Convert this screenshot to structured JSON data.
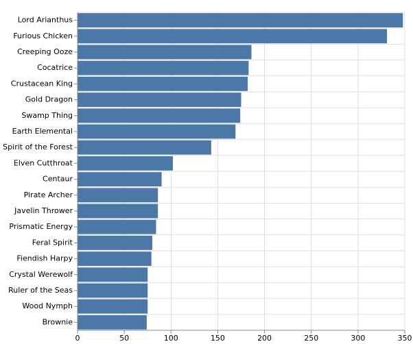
{
  "chart_data": {
    "type": "bar",
    "orientation": "horizontal",
    "categories": [
      "Lord Arianthus",
      "Furious Chicken",
      "Creeping Ooze",
      "Cocatrice",
      "Crustacean King",
      "Gold Dragon",
      "Swamp Thing",
      "Earth Elemental",
      "Spirit of the Forest",
      "Elven Cutthroat",
      "Centaur",
      "Pirate Archer",
      "Javelin Thrower",
      "Prismatic Energy",
      "Feral Spirit",
      "Fiendish Harpy",
      "Crystal Werewolf",
      "Ruler of the Seas",
      "Wood Nymph",
      "Brownie"
    ],
    "values": [
      348,
      331,
      186,
      183,
      182,
      175,
      174,
      169,
      143,
      102,
      90,
      86,
      86,
      84,
      80,
      79,
      75,
      75,
      75,
      74
    ],
    "color": "#4c78a8",
    "xlim": [
      0,
      350
    ],
    "xticks": [
      0,
      50,
      100,
      150,
      200,
      250,
      300,
      350
    ],
    "grid": true
  }
}
